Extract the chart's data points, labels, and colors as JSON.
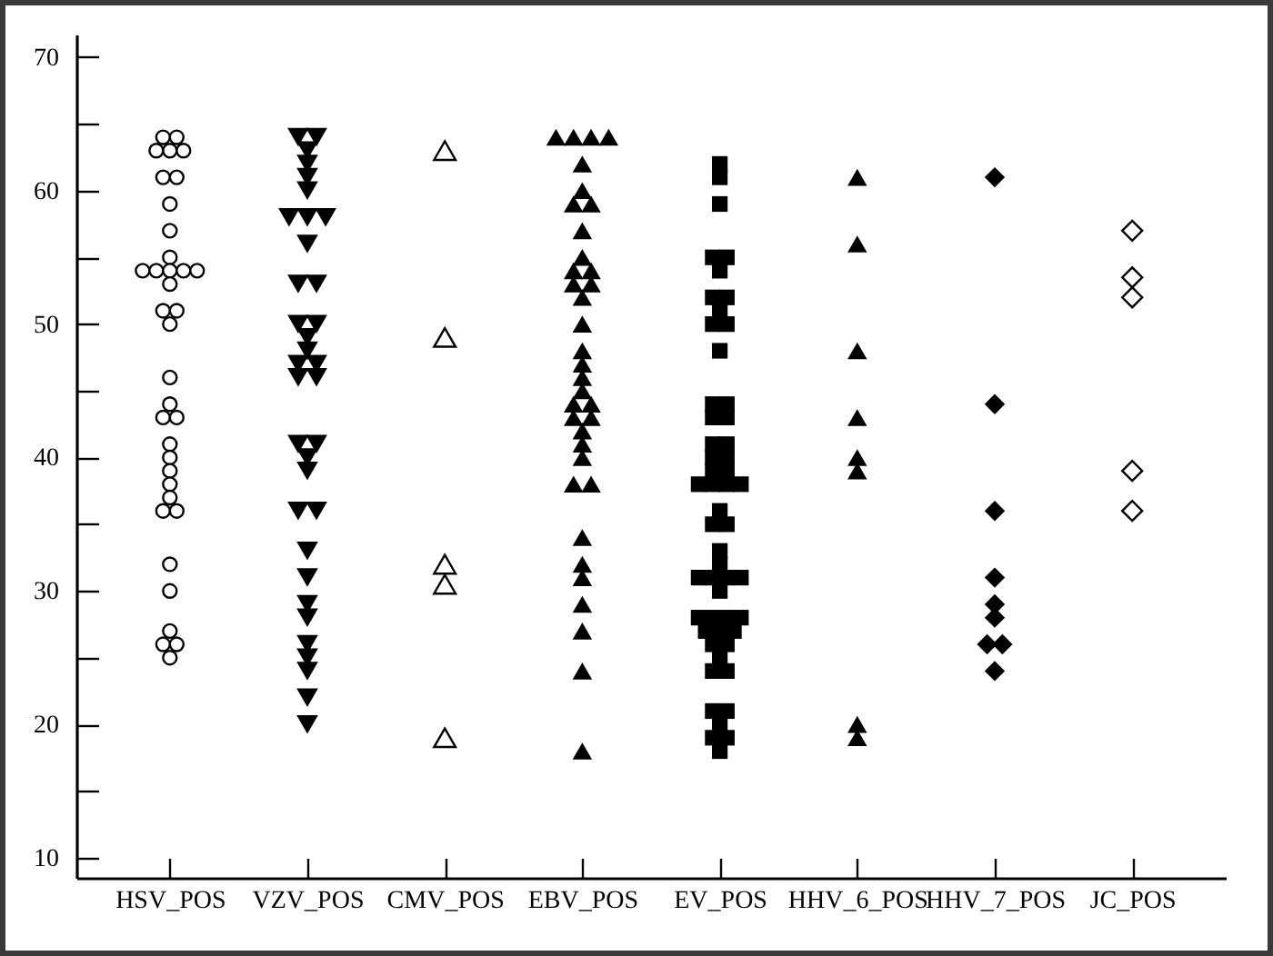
{
  "chart_data": {
    "type": "scatter",
    "categories": [
      "HSV_POS",
      "VZV_POS",
      "CMV_POS",
      "EBV_POS",
      "EV_POS",
      "HHV_6_POS",
      "HHV_7_POS",
      "JC_POS"
    ],
    "series": [
      {
        "color": "#000000",
        "marker": "circle-open",
        "x": [
          "HSV_POS",
          "HSV_POS",
          "HSV_POS",
          "HSV_POS",
          "HSV_POS",
          "HSV_POS",
          "HSV_POS",
          "HSV_POS",
          "HSV_POS",
          "HSV_POS",
          "HSV_POS",
          "HSV_POS",
          "HSV_POS",
          "HSV_POS",
          "HSV_POS",
          "HSV_POS",
          "HSV_POS",
          "HSV_POS",
          "HSV_POS",
          "HSV_POS",
          "HSV_POS",
          "HSV_POS",
          "HSV_POS",
          "HSV_POS",
          "HSV_POS",
          "HSV_POS",
          "HSV_POS",
          "HSV_POS",
          "HSV_POS",
          "HSV_POS",
          "HSV_POS",
          "HSV_POS",
          "HSV_POS",
          "HSV_POS",
          "HSV_POS",
          "HSV_POS"
        ],
        "values": [
          64,
          64,
          63,
          63,
          63,
          61,
          61,
          59,
          57,
          55,
          54,
          54,
          54,
          54,
          54,
          53,
          51,
          51,
          50,
          46,
          44,
          43,
          43,
          41,
          40,
          39,
          38,
          37,
          36,
          36,
          32,
          30,
          27,
          26,
          26,
          25
        ]
      },
      {
        "color": "#000000",
        "marker": "triangle-down",
        "x": [
          "VZV_POS",
          "VZV_POS",
          "VZV_POS",
          "VZV_POS",
          "VZV_POS",
          "VZV_POS",
          "VZV_POS",
          "VZV_POS",
          "VZV_POS",
          "VZV_POS",
          "VZV_POS",
          "VZV_POS",
          "VZV_POS",
          "VZV_POS",
          "VZV_POS",
          "VZV_POS",
          "VZV_POS",
          "VZV_POS",
          "VZV_POS",
          "VZV_POS",
          "VZV_POS",
          "VZV_POS",
          "VZV_POS",
          "VZV_POS",
          "VZV_POS",
          "VZV_POS",
          "VZV_POS",
          "VZV_POS",
          "VZV_POS",
          "VZV_POS",
          "VZV_POS",
          "VZV_POS",
          "VZV_POS",
          "VZV_POS",
          "VZV_POS"
        ],
        "values": [
          64,
          64,
          63,
          62,
          61,
          60,
          58,
          58,
          58,
          56,
          53,
          53,
          50,
          50,
          49,
          48,
          47,
          47,
          46,
          46,
          41,
          41,
          40,
          39,
          36,
          36,
          33,
          31,
          29,
          28,
          26,
          25,
          24,
          22,
          20
        ]
      },
      {
        "color": "#000000",
        "marker": "triangle-open",
        "x": [
          "CMV_POS",
          "CMV_POS",
          "CMV_POS",
          "CMV_POS",
          "CMV_POS"
        ],
        "values": [
          63,
          49,
          32,
          30.5,
          19
        ]
      },
      {
        "color": "#000000",
        "marker": "triangle",
        "x": [
          "EBV_POS",
          "EBV_POS",
          "EBV_POS",
          "EBV_POS",
          "EBV_POS",
          "EBV_POS",
          "EBV_POS",
          "EBV_POS",
          "EBV_POS",
          "EBV_POS",
          "EBV_POS",
          "EBV_POS",
          "EBV_POS",
          "EBV_POS",
          "EBV_POS",
          "EBV_POS",
          "EBV_POS",
          "EBV_POS",
          "EBV_POS",
          "EBV_POS",
          "EBV_POS",
          "EBV_POS",
          "EBV_POS",
          "EBV_POS",
          "EBV_POS",
          "EBV_POS",
          "EBV_POS",
          "EBV_POS",
          "EBV_POS",
          "EBV_POS",
          "EBV_POS",
          "EBV_POS",
          "EBV_POS",
          "EBV_POS",
          "EBV_POS",
          "EBV_POS"
        ],
        "values": [
          64,
          64,
          64,
          64,
          62,
          60,
          59,
          59,
          57,
          55,
          54,
          54,
          53,
          53,
          52,
          50,
          48,
          47,
          46,
          45,
          44,
          44,
          43,
          43,
          42,
          41,
          40,
          38,
          38,
          34,
          32,
          31,
          29,
          27,
          24,
          18
        ]
      },
      {
        "color": "#000000",
        "marker": "square",
        "x": [
          "EV_POS",
          "EV_POS",
          "EV_POS",
          "EV_POS",
          "EV_POS",
          "EV_POS",
          "EV_POS",
          "EV_POS",
          "EV_POS",
          "EV_POS",
          "EV_POS",
          "EV_POS",
          "EV_POS",
          "EV_POS",
          "EV_POS",
          "EV_POS",
          "EV_POS",
          "EV_POS",
          "EV_POS",
          "EV_POS",
          "EV_POS",
          "EV_POS",
          "EV_POS",
          "EV_POS",
          "EV_POS",
          "EV_POS",
          "EV_POS",
          "EV_POS",
          "EV_POS",
          "EV_POS",
          "EV_POS",
          "EV_POS",
          "EV_POS",
          "EV_POS",
          "EV_POS",
          "EV_POS",
          "EV_POS",
          "EV_POS",
          "EV_POS",
          "EV_POS",
          "EV_POS",
          "EV_POS",
          "EV_POS",
          "EV_POS",
          "EV_POS",
          "EV_POS",
          "EV_POS",
          "EV_POS",
          "EV_POS",
          "EV_POS",
          "EV_POS",
          "EV_POS",
          "EV_POS",
          "EV_POS"
        ],
        "values": [
          62,
          61,
          59,
          55,
          55,
          54,
          52,
          52,
          51,
          50,
          50,
          48,
          44,
          44,
          43,
          43,
          41,
          41,
          40,
          40,
          39,
          39,
          38,
          38,
          38,
          38,
          36,
          35,
          35,
          33,
          32,
          31,
          31,
          31,
          31,
          30,
          28,
          28,
          28,
          28,
          27,
          27,
          27,
          26,
          26,
          25,
          24,
          24,
          21,
          21,
          20,
          19,
          19,
          18
        ]
      },
      {
        "color": "#000000",
        "marker": "triangle",
        "x": [
          "HHV_6_POS",
          "HHV_6_POS",
          "HHV_6_POS",
          "HHV_6_POS",
          "HHV_6_POS",
          "HHV_6_POS",
          "HHV_6_POS",
          "HHV_6_POS"
        ],
        "values": [
          61,
          56,
          48,
          43,
          40,
          39,
          20,
          19
        ]
      },
      {
        "color": "#000000",
        "marker": "diamond",
        "x": [
          "HHV_7_POS",
          "HHV_7_POS",
          "HHV_7_POS",
          "HHV_7_POS",
          "HHV_7_POS",
          "HHV_7_POS",
          "HHV_7_POS",
          "HHV_7_POS",
          "HHV_7_POS"
        ],
        "values": [
          61,
          44,
          36,
          31,
          29,
          28,
          26,
          26,
          24
        ]
      },
      {
        "color": "#000000",
        "marker": "diamond-open",
        "x": [
          "JC_POS",
          "JC_POS",
          "JC_POS",
          "JC_POS",
          "JC_POS"
        ],
        "values": [
          57,
          53.5,
          52,
          39,
          36
        ]
      }
    ],
    "ylim": [
      8.5,
      71.7
    ],
    "yticks": [
      10,
      {
        "value": 15,
        "label": null
      },
      20,
      {
        "value": 25,
        "label": null
      },
      30,
      {
        "value": 35,
        "label": null
      },
      40,
      {
        "value": 45,
        "label": null
      },
      50,
      {
        "value": 55,
        "label": null
      },
      60,
      {
        "value": 65,
        "label": null
      },
      70
    ]
  }
}
